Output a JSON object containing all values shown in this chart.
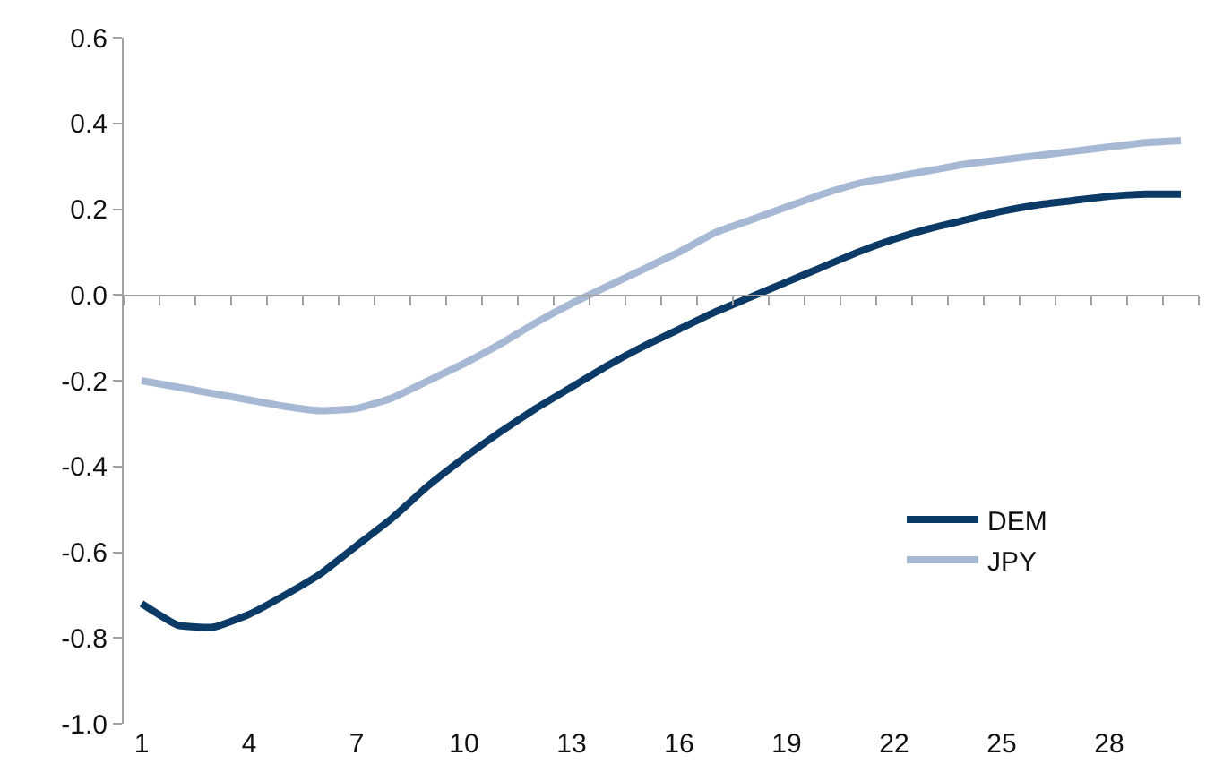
{
  "chart_data": {
    "type": "line",
    "x": [
      1,
      2,
      3,
      4,
      5,
      6,
      7,
      8,
      9,
      10,
      11,
      12,
      13,
      14,
      15,
      16,
      17,
      18,
      19,
      20,
      21,
      22,
      23,
      24,
      25,
      26,
      27,
      28,
      29,
      30
    ],
    "series": [
      {
        "name": "DEM",
        "color": "#0b3a66",
        "values": [
          -0.72,
          -0.77,
          -0.775,
          -0.745,
          -0.7,
          -0.65,
          -0.585,
          -0.52,
          -0.445,
          -0.38,
          -0.32,
          -0.265,
          -0.215,
          -0.165,
          -0.12,
          -0.08,
          -0.04,
          -0.005,
          0.03,
          0.065,
          0.1,
          0.13,
          0.155,
          0.175,
          0.195,
          0.21,
          0.22,
          0.23,
          0.235,
          0.235
        ]
      },
      {
        "name": "JPY",
        "color": "#a6b8d3",
        "values": [
          -0.2,
          -0.215,
          -0.23,
          -0.245,
          -0.26,
          -0.27,
          -0.265,
          -0.24,
          -0.2,
          -0.16,
          -0.115,
          -0.065,
          -0.02,
          0.02,
          0.06,
          0.1,
          0.145,
          0.175,
          0.205,
          0.235,
          0.26,
          0.275,
          0.29,
          0.305,
          0.315,
          0.325,
          0.335,
          0.345,
          0.355,
          0.36
        ]
      }
    ],
    "xlim": [
      0.5,
      30.5
    ],
    "xticks": [
      1,
      4,
      7,
      10,
      13,
      16,
      19,
      22,
      25,
      28
    ],
    "ylim": [
      -1.0,
      0.6
    ],
    "yticks": [
      {
        "value": -1.0,
        "label": "-1.0"
      },
      -0.8,
      -0.6,
      -0.4,
      -0.2,
      {
        "value": 0,
        "label": "0.0"
      },
      0.2,
      0.4,
      0.6
    ],
    "grid": false,
    "ref_lines": [
      {
        "axis": "y",
        "value": 0,
        "color": "#a0a0a0"
      }
    ],
    "legend": "bottom right",
    "marker": "none",
    "line_style": "solid"
  }
}
